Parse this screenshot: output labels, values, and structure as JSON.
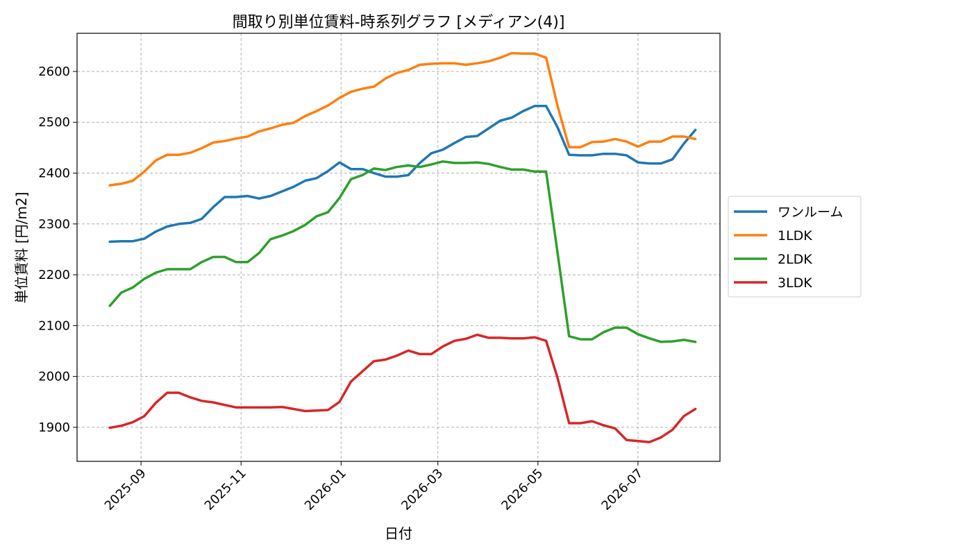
{
  "chart_data": {
    "type": "line",
    "title": "間取り別単位賃料-時系列グラフ [メディアン(4)]",
    "xlabel": "日付",
    "ylabel": "単位賃料 [円/m2]",
    "xlim": [
      "2025-07-24",
      "2026-08-20"
    ],
    "ylim": [
      1833,
      2675
    ],
    "y_ticks": [
      1900,
      2000,
      2100,
      2200,
      2300,
      2400,
      2500,
      2600
    ],
    "x_ticks": [
      "2025-09-01",
      "2025-11-01",
      "2026-01-01",
      "2026-03-01",
      "2026-05-01",
      "2026-07-01"
    ],
    "x_tick_labels": [
      "2025-09",
      "2025-11",
      "2026-01",
      "2026-03",
      "2026-05",
      "2026-07"
    ],
    "grid": true,
    "legend_position": "center-right-outside",
    "x": [
      "2025-08-13",
      "2025-08-20",
      "2025-08-27",
      "2025-09-03",
      "2025-09-10",
      "2025-09-17",
      "2025-09-24",
      "2025-10-01",
      "2025-10-08",
      "2025-10-15",
      "2025-10-22",
      "2025-10-29",
      "2025-11-05",
      "2025-11-12",
      "2025-11-19",
      "2025-11-26",
      "2025-12-03",
      "2025-12-10",
      "2025-12-17",
      "2025-12-24",
      "2025-12-31",
      "2026-01-07",
      "2026-01-14",
      "2026-01-21",
      "2026-01-28",
      "2026-02-04",
      "2026-02-11",
      "2026-02-18",
      "2026-02-25",
      "2026-03-04",
      "2026-03-11",
      "2026-03-18",
      "2026-03-25",
      "2026-04-01",
      "2026-04-08",
      "2026-04-15",
      "2026-04-22",
      "2026-04-29",
      "2026-05-06",
      "2026-05-13",
      "2026-05-20",
      "2026-05-27",
      "2026-06-03",
      "2026-06-10",
      "2026-06-17",
      "2026-06-24",
      "2026-07-01",
      "2026-07-08",
      "2026-07-15",
      "2026-07-22",
      "2026-07-29",
      "2026-08-05"
    ],
    "series": [
      {
        "name": "ワンルーム",
        "color": "#1f77b4",
        "values": [
          2265,
          2266,
          2266,
          2271,
          2285,
          2295,
          2300,
          2302,
          2310,
          2333,
          2353,
          2353,
          2355,
          2350,
          2355,
          2364,
          2373,
          2385,
          2390,
          2404,
          2421,
          2408,
          2408,
          2400,
          2393,
          2393,
          2396,
          2420,
          2439,
          2446,
          2459,
          2471,
          2473,
          2488,
          2503,
          2509,
          2522,
          2532,
          2532,
          2490,
          2436,
          2435,
          2435,
          2438,
          2438,
          2435,
          2421,
          2419,
          2419,
          2427,
          2458,
          2485
        ]
      },
      {
        "name": "1LDK",
        "color": "#ff7f0e",
        "values": [
          2376,
          2379,
          2385,
          2403,
          2425,
          2436,
          2436,
          2440,
          2449,
          2460,
          2463,
          2468,
          2472,
          2482,
          2488,
          2495,
          2499,
          2512,
          2522,
          2533,
          2548,
          2560,
          2566,
          2570,
          2586,
          2597,
          2603,
          2613,
          2615,
          2616,
          2616,
          2613,
          2616,
          2620,
          2627,
          2636,
          2635,
          2635,
          2627,
          2532,
          2451,
          2451,
          2461,
          2462,
          2467,
          2462,
          2452,
          2462,
          2462,
          2472,
          2472,
          2467
        ]
      },
      {
        "name": "2LDK",
        "color": "#2ca02c",
        "values": [
          2139,
          2165,
          2175,
          2192,
          2204,
          2211,
          2211,
          2211,
          2225,
          2235,
          2235,
          2225,
          2225,
          2243,
          2270,
          2277,
          2286,
          2298,
          2315,
          2323,
          2351,
          2388,
          2396,
          2409,
          2406,
          2412,
          2415,
          2412,
          2417,
          2423,
          2420,
          2420,
          2421,
          2418,
          2412,
          2407,
          2407,
          2403,
          2403,
          2243,
          2079,
          2073,
          2073,
          2087,
          2096,
          2096,
          2083,
          2075,
          2068,
          2069,
          2072,
          2068
        ]
      },
      {
        "name": "3LDK",
        "color": "#d62728",
        "values": [
          1899,
          1903,
          1910,
          1922,
          1948,
          1968,
          1968,
          1959,
          1952,
          1949,
          1944,
          1939,
          1939,
          1939,
          1939,
          1940,
          1936,
          1932,
          1933,
          1934,
          1950,
          1990,
          2010,
          2030,
          2033,
          2041,
          2051,
          2044,
          2044,
          2059,
          2070,
          2074,
          2082,
          2076,
          2076,
          2075,
          2075,
          2077,
          2070,
          1997,
          1908,
          1908,
          1912,
          1904,
          1898,
          1875,
          1873,
          1871,
          1880,
          1895,
          1922,
          1936
        ]
      }
    ]
  }
}
